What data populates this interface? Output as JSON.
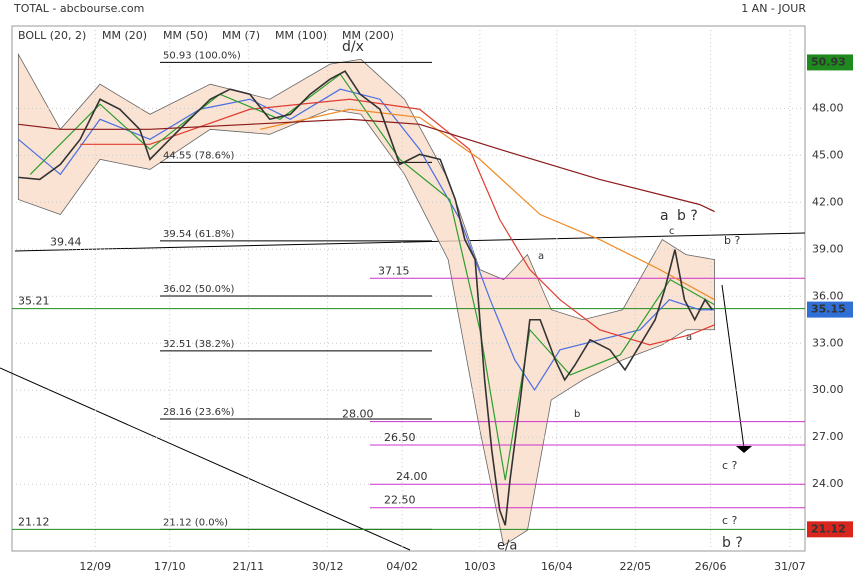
{
  "chart_data": {
    "type": "line",
    "title": "TOTAL - abcbourse.com",
    "subtitle": "1 AN - JOUR",
    "xlim": [
      0,
      100
    ],
    "ylim": [
      19.8,
      53.0
    ],
    "grid": true,
    "xticks": [
      {
        "value": 10.5,
        "label": "12/09"
      },
      {
        "value": 19.9,
        "label": "17/10"
      },
      {
        "value": 29.8,
        "label": "21/11"
      },
      {
        "value": 39.8,
        "label": "30/12"
      },
      {
        "value": 49.2,
        "label": "04/02"
      },
      {
        "value": 59.0,
        "label": "10/03"
      },
      {
        "value": 68.7,
        "label": "16/04"
      },
      {
        "value": 78.6,
        "label": "22/05"
      },
      {
        "value": 88.1,
        "label": "26/06"
      },
      {
        "value": 98.1,
        "label": "31/07"
      }
    ],
    "yticks": [
      {
        "value": 24,
        "label": "24.00"
      },
      {
        "value": 27,
        "label": "27.00"
      },
      {
        "value": 30,
        "label": "30.00"
      },
      {
        "value": 33,
        "label": "33.00"
      },
      {
        "value": 36,
        "label": "36.00"
      },
      {
        "value": 39,
        "label": "39.00"
      },
      {
        "value": 42,
        "label": "42.00"
      },
      {
        "value": 45,
        "label": "45.00"
      },
      {
        "value": 48,
        "label": "48.00"
      }
    ],
    "price": {
      "color": "#333333",
      "x": [
        0.8,
        3.5,
        6.1,
        8.6,
        11.1,
        13.6,
        16.1,
        17.4,
        19.9,
        22.4,
        25.0,
        27.5,
        30.0,
        32.5,
        35.1,
        37.6,
        40.1,
        42.0,
        43.9,
        46.4,
        48.9,
        51.4,
        54.0,
        55.9,
        57.1,
        58.4,
        59.6,
        60.5,
        61.5,
        62.2,
        62.8,
        64.1,
        65.3,
        66.6,
        68.5,
        69.7,
        71.0,
        72.9,
        75.4,
        77.3,
        79.2,
        81.1,
        82.3,
        83.6,
        84.8,
        86.1,
        87.4,
        88.3
      ],
      "values": [
        43.59,
        43.46,
        44.42,
        46.02,
        48.58,
        47.94,
        46.66,
        44.74,
        46.02,
        47.3,
        48.58,
        49.22,
        48.9,
        47.3,
        47.62,
        48.9,
        49.86,
        50.37,
        48.9,
        47.94,
        44.42,
        45.06,
        44.74,
        42.18,
        39.62,
        38.34,
        30.66,
        26.18,
        22.34,
        21.38,
        24.26,
        29.38,
        34.5,
        34.5,
        31.94,
        30.66,
        31.62,
        33.22,
        32.58,
        31.3,
        32.9,
        34.5,
        36.42,
        38.98,
        35.78,
        34.5,
        35.78,
        35.14
      ]
    },
    "band": {
      "name": "BOLL (20, 2)",
      "color": "#f9dcc8",
      "x": [
        0.8,
        6.1,
        11.1,
        17.4,
        25.0,
        32.5,
        40.1,
        44.0,
        49.5,
        55.0,
        59.0,
        62.0,
        65.0,
        68.0,
        72.0,
        77.0,
        82.0,
        85.0,
        88.6
      ],
      "upper": [
        51.45,
        46.66,
        49.54,
        47.62,
        49.54,
        48.58,
        50.82,
        51.13,
        48.58,
        43.46,
        37.7,
        37.06,
        38.66,
        35.14,
        34.5,
        35.14,
        39.62,
        38.66,
        38.34
      ],
      "lower": [
        42.18,
        41.22,
        44.74,
        44.1,
        46.66,
        46.34,
        47.94,
        47.62,
        43.78,
        38.34,
        27.46,
        20.1,
        21.06,
        29.38,
        30.66,
        31.94,
        32.9,
        33.86,
        33.86
      ]
    },
    "series": [
      {
        "name": "MM (20)",
        "color": "#4a6fe3",
        "x": [
          0.8,
          6.1,
          11.1,
          17.4,
          23.7,
          30.0,
          35.1,
          41.4,
          46.4,
          51.4,
          56.5,
          60.3,
          63.4,
          65.9,
          69.1,
          74.1,
          79.2,
          82.9,
          86.7,
          88.6
        ],
        "values": [
          46.02,
          43.78,
          47.3,
          46.02,
          47.94,
          48.58,
          47.3,
          49.22,
          48.58,
          45.38,
          40.9,
          35.78,
          31.94,
          30.02,
          32.58,
          33.22,
          33.86,
          35.78,
          35.14,
          35.14
        ]
      },
      {
        "name": "MM (50)",
        "color": "#e03c31",
        "x": [
          8.6,
          17.4,
          30.0,
          42.6,
          51.4,
          57.7,
          61.5,
          65.3,
          69.1,
          74.1,
          80.4,
          85.5,
          88.6
        ],
        "values": [
          45.7,
          45.7,
          47.94,
          48.58,
          47.94,
          45.38,
          40.9,
          37.7,
          35.78,
          33.86,
          32.9,
          33.54,
          34.18
        ]
      },
      {
        "name": "MM (7)",
        "color": "#2e9e2e",
        "x": [
          2.3,
          11.1,
          17.4,
          26.2,
          33.8,
          41.4,
          48.9,
          55.2,
          59.0,
          62.2,
          65.3,
          70.4,
          76.7,
          83.0,
          88.6
        ],
        "values": [
          43.78,
          48.26,
          45.38,
          48.9,
          47.3,
          50.18,
          44.74,
          42.18,
          33.86,
          24.26,
          33.86,
          30.98,
          32.26,
          37.06,
          35.46
        ]
      },
      {
        "name": "MM (100)",
        "color": "#f08a24",
        "x": [
          31.3,
          42.6,
          51.4,
          59.0,
          66.6,
          74.1,
          81.7,
          88.6
        ],
        "values": [
          46.66,
          47.94,
          47.42,
          44.74,
          41.22,
          39.62,
          37.7,
          35.78
        ]
      },
      {
        "name": "MM (200)",
        "color": "#8b1a1a",
        "x": [
          0.8,
          6.1,
          17.4,
          30.0,
          42.6,
          51.4,
          61.5,
          74.1,
          86.7,
          88.6
        ],
        "values": [
          46.98,
          46.66,
          46.66,
          46.98,
          47.3,
          46.98,
          45.38,
          43.46,
          41.86,
          41.41
        ]
      }
    ],
    "fib_levels": [
      {
        "value": 50.93,
        "label": "50.93  (100.0%)"
      },
      {
        "value": 44.55,
        "label": "44.55  (78.6%)"
      },
      {
        "value": 39.54,
        "label": "39.54  (61.8%)"
      },
      {
        "value": 36.02,
        "label": "36.02  (50.0%)"
      },
      {
        "value": 32.51,
        "label": "32.51  (38.2%)"
      },
      {
        "value": 28.16,
        "label": "28.16  (23.6%)"
      },
      {
        "value": 21.12,
        "label": "21.12  (0.0%)"
      }
    ],
    "targets": [
      37.15,
      {
        "value": 28.0,
        "label": "28.00"
      },
      {
        "value": 26.5,
        "label": "26.50"
      },
      {
        "value": 24.0,
        "label": "24.00"
      },
      {
        "value": 22.5,
        "label": "22.50"
      }
    ],
    "supports": [
      35.21,
      21.12
    ],
    "trend_label": 39.44,
    "badges": [
      {
        "value": 50.93,
        "color": "#1e8a1e"
      },
      {
        "value": 35.15,
        "color": "#2f6fd6"
      },
      {
        "value": 21.12,
        "color": "#d8261e"
      }
    ],
    "wave_labels": [
      "d/x",
      "e/a",
      "a",
      "b",
      "c",
      "a",
      "b ?",
      "b ?",
      "c ?",
      "c ?",
      "b ?",
      "a"
    ]
  }
}
